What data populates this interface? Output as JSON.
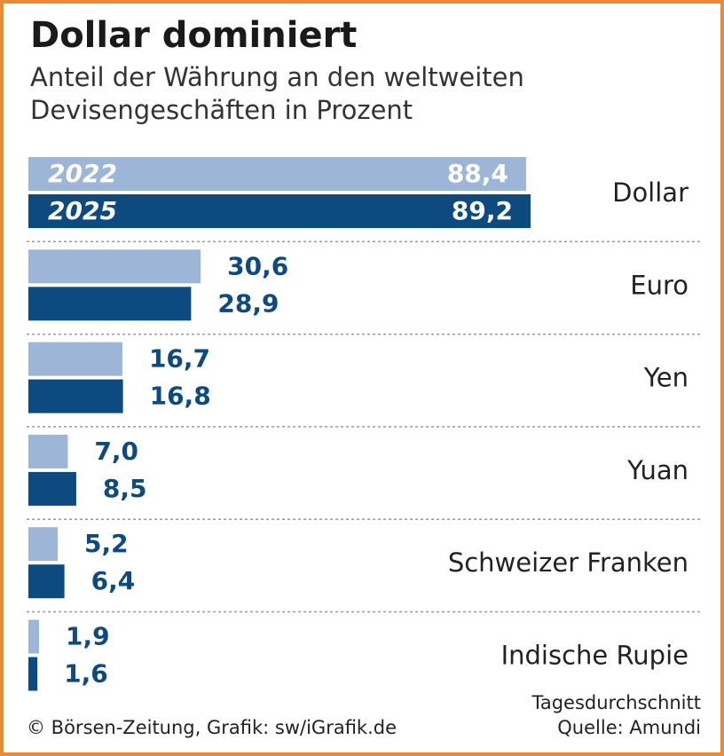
{
  "chart_data": {
    "type": "hbar",
    "title": "Dollar dominiert",
    "subtitle": [
      "Anteil der Währung an den weltweiten",
      "Devisengeschäften in Prozent"
    ],
    "categories": [
      "Dollar",
      "Euro",
      "Yen",
      "Yuan",
      "Schweizer Franken",
      "Indische Rupie"
    ],
    "series": [
      {
        "name": "2022",
        "color": "#9db5d6",
        "values": [
          88.4,
          30.6,
          16.7,
          7.0,
          5.2,
          1.9
        ],
        "value_labels": [
          "88,4",
          "30,6",
          "16,7",
          "7,0",
          "5,2",
          "1,9"
        ]
      },
      {
        "name": "2025",
        "color": "#0d4a80",
        "values": [
          89.2,
          28.9,
          16.8,
          8.5,
          6.4,
          1.6
        ],
        "value_labels": [
          "89,2",
          "28,9",
          "16,8",
          "8,5",
          "6,4",
          "1,6"
        ]
      }
    ],
    "note": "Tagesdurchschnitt",
    "source": "Quelle: Amundi",
    "credit": "© Börsen-Zeitung, Grafik: sw/iGrafik.de"
  }
}
